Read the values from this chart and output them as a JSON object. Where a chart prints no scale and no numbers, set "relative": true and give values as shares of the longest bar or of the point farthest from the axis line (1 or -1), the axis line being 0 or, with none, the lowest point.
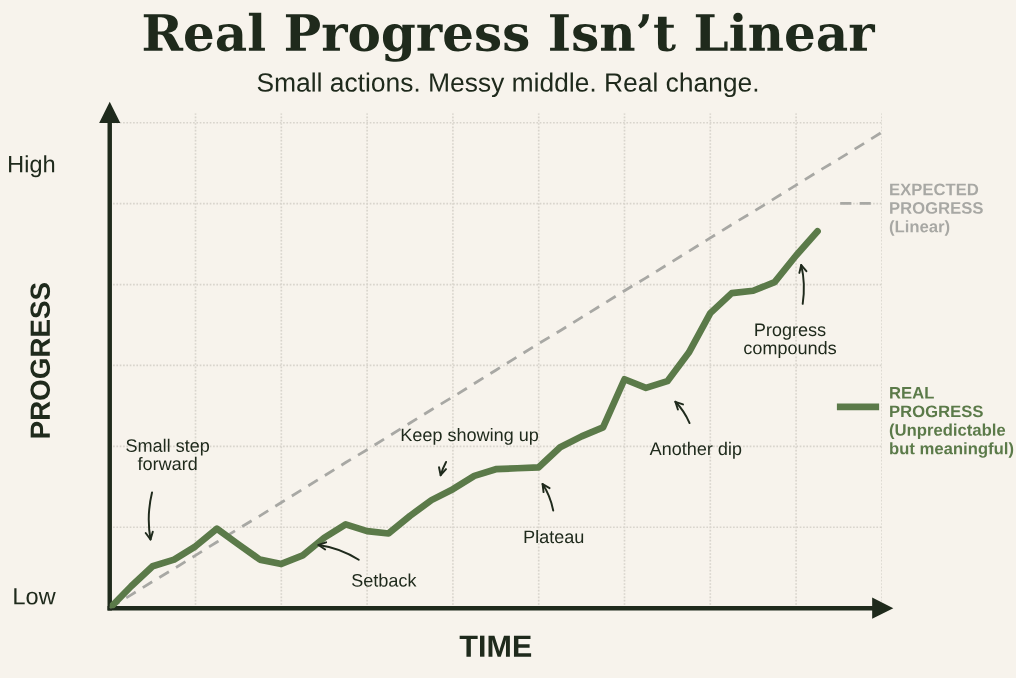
{
  "chart_data": {
    "type": "line",
    "title": "Real Progress Isn’t Linear",
    "subtitle": "Small actions. Messy middle. Real change.",
    "xlabel": "TIME",
    "ylabel": "PROGRESS",
    "relative": true,
    "categories": [
      null,
      null,
      null,
      null,
      null,
      null,
      null,
      null,
      null,
      null,
      null,
      null,
      null,
      null,
      null,
      null,
      null,
      null,
      null,
      null,
      null,
      null,
      null,
      null,
      null,
      null,
      null,
      null,
      null,
      null,
      null,
      null,
      null,
      null,
      null,
      null,
      null
    ],
    "series": [
      {
        "name": "EXPECTED\nPROGRESS\n(Linear)",
        "color": "#a8a8a4",
        "line_style": "dashed",
        "values": [
          0,
          0.028,
          0.056,
          0.083,
          0.111,
          0.139,
          0.167,
          0.194,
          0.222,
          0.25,
          0.278,
          0.306,
          0.333,
          0.361,
          0.389,
          0.417,
          0.444,
          0.472,
          0.5,
          0.528,
          0.556,
          0.583,
          0.611,
          0.639,
          0.667,
          0.694,
          0.722,
          0.75,
          0.778,
          0.806,
          0.833,
          0.861,
          0.889,
          0.917,
          0.944,
          0.972,
          1
        ]
      },
      {
        "name": "REAL\nPROGRESS\n(Unpredictable\nbut meaningful)",
        "color": "#5b7a49",
        "line_style": "solid",
        "values": [
          0,
          0.046,
          0.088,
          0.102,
          0.13,
          0.167,
          0.134,
          0.102,
          0.093,
          0.111,
          0.148,
          0.176,
          0.162,
          0.157,
          0.194,
          0.227,
          0.25,
          0.278,
          0.292,
          0.294,
          0.296,
          0.338,
          0.361,
          0.38,
          0.481,
          0.463,
          0.477,
          0.537,
          0.62,
          0.662,
          0.667,
          0.685,
          0.741,
          0.792,
          null,
          null,
          null
        ]
      }
    ],
    "grid": true,
    "legend": "right",
    "marker": "none",
    "annotations": [
      "High",
      "Low",
      "Small step\nforward",
      "Setback",
      "Keep showing up",
      "Plateau",
      "Another dip",
      "Progress\ncompounds"
    ]
  }
}
